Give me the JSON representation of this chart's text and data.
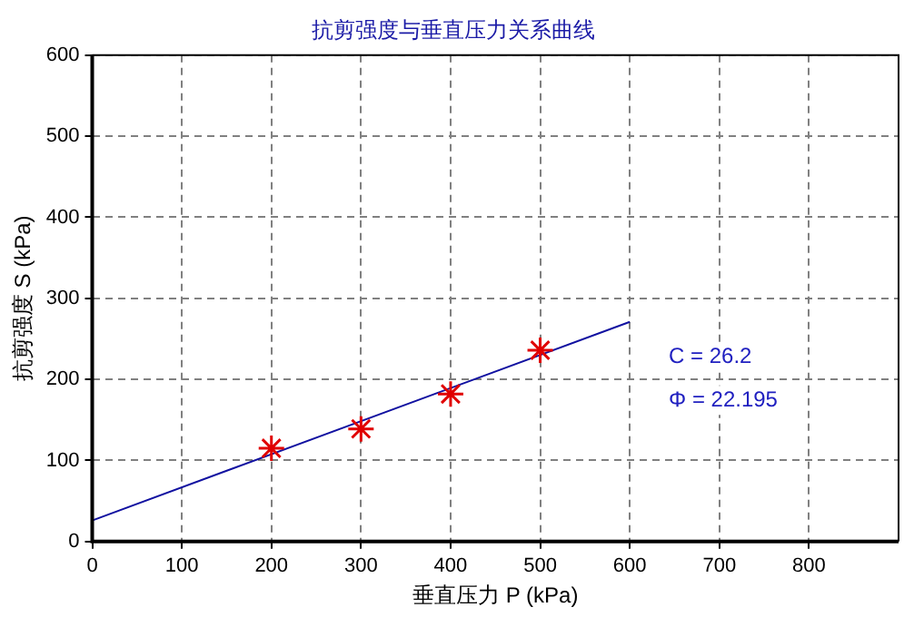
{
  "chart_data": {
    "type": "scatter",
    "title": "抗剪强度与垂直压力关系曲线",
    "xlabel": "垂直压力 P (kPa)",
    "ylabel": "抗剪强度 S (kPa)",
    "xlim": [
      0,
      900
    ],
    "xticks": [
      0,
      100,
      200,
      300,
      400,
      500,
      600,
      700,
      800
    ],
    "ylim": [
      0,
      600
    ],
    "yticks": [
      0,
      100,
      200,
      300,
      400,
      500,
      600
    ],
    "grid": true,
    "marker": "cross",
    "series": [
      {
        "type": "scatter",
        "color": "#e00000",
        "x": [
          200,
          300,
          400,
          500
        ],
        "values": [
          115,
          139,
          182,
          236
        ]
      },
      {
        "type": "line",
        "color": "#1010a0",
        "marker": "none",
        "x": [
          0,
          600
        ],
        "values": [
          26,
          271
        ]
      }
    ],
    "annotations": [
      "C = 26.2",
      "Φ = 22.195"
    ]
  }
}
